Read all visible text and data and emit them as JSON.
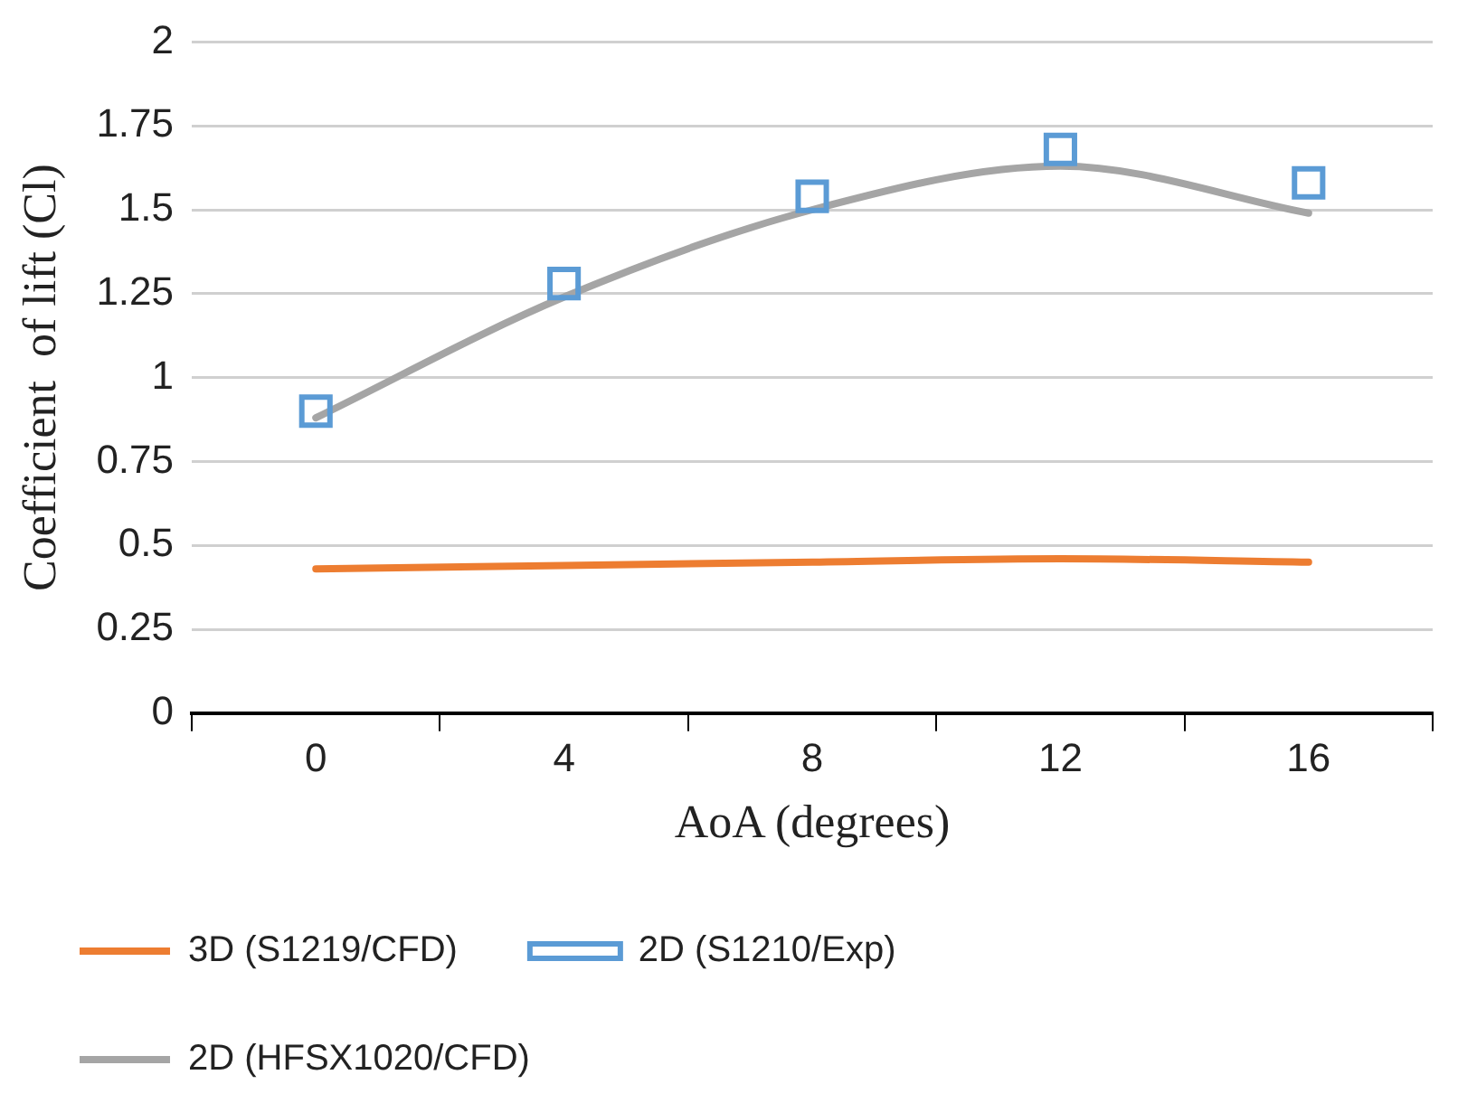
{
  "chart_data": {
    "type": "line",
    "xlabel": "AoA (degrees)",
    "ylabel": "Coefficient  of lift (Cl)",
    "categories": [
      "0",
      "4",
      "8",
      "12",
      "16"
    ],
    "ylim": [
      0,
      2
    ],
    "yticks": [
      0,
      0.25,
      0.5,
      0.75,
      1,
      1.25,
      1.5,
      1.75,
      2
    ],
    "grid": "y",
    "legend": "bottom",
    "series": [
      {
        "name": "3D (S1219/CFD)",
        "marker": "none",
        "color": "#ed7d31",
        "values": [
          0.43,
          0.44,
          0.45,
          0.46,
          0.45
        ]
      },
      {
        "name": "2D (S1210/Exp)",
        "type": "scatter",
        "marker": "square",
        "color": "#5b9bd5",
        "values": [
          0.9,
          1.28,
          1.54,
          1.68,
          1.58
        ]
      },
      {
        "name": "2D (HFSX1020/CFD)",
        "marker": "none",
        "color": "#a5a5a5",
        "values": [
          0.88,
          1.24,
          1.5,
          1.63,
          1.49
        ]
      }
    ]
  }
}
